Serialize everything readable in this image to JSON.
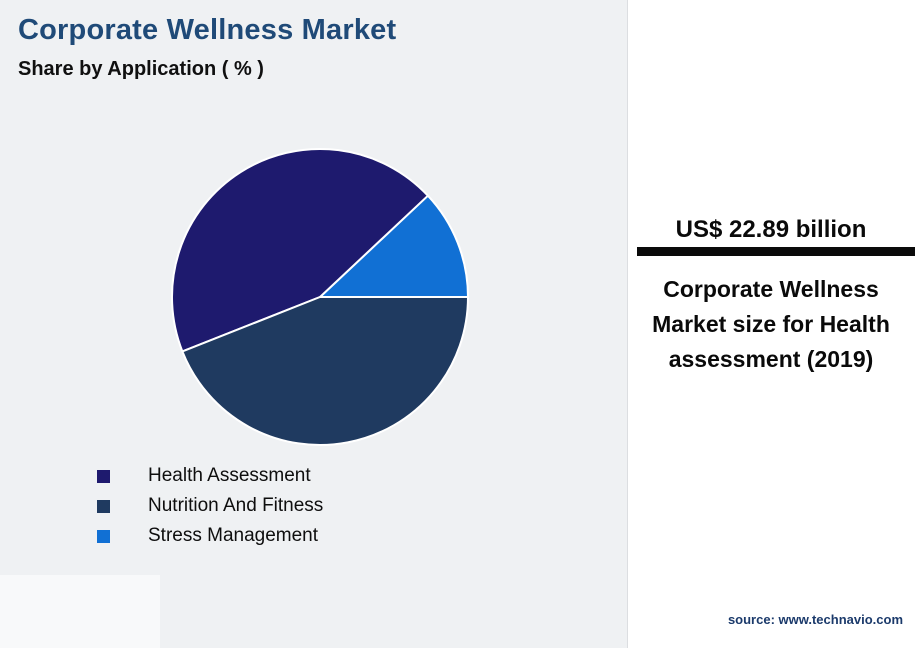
{
  "header": {
    "title": "Corporate Wellness Market",
    "subtitle": "Share by Application ( % )"
  },
  "chart_data": {
    "type": "pie",
    "title": "Corporate Wellness Market",
    "subtitle": "Share by Application ( % )",
    "slices": [
      {
        "label": "Health Assessment",
        "value": 44,
        "color": "#1e1a6e"
      },
      {
        "label": "Nutrition And Fitness",
        "value": 44,
        "color": "#1f3a60"
      },
      {
        "label": "Stress Management",
        "value": 12,
        "color": "#1170d4"
      }
    ],
    "draw_order": [
      2,
      0,
      1
    ],
    "start_angle_deg": 0,
    "direction": "counterclockwise",
    "legend_position": "bottom-left"
  },
  "callout": {
    "value": "US$ 22.89 billion",
    "description": "Corporate Wellness Market size for Health assessment (2019)"
  },
  "footer": {
    "source": "source: www.technavio.com"
  },
  "colors": {
    "title_text": "#1f4a78",
    "divider_bar": "#0a0a0a",
    "panel_background": "#ffffff",
    "page_background": "#eff1f3"
  }
}
